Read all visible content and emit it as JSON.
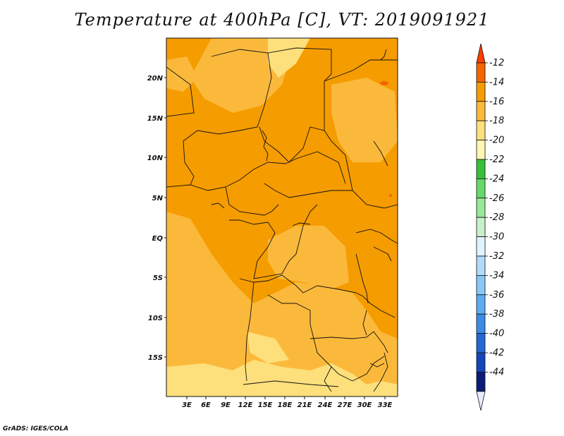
{
  "title": "Temperature at 400hPa [C], VT: 2019091921",
  "credit": "GrADS: IGES/COLA",
  "map": {
    "lon_labels": [
      "3E",
      "6E",
      "9E",
      "12E",
      "15E",
      "18E",
      "21E",
      "24E",
      "27E",
      "30E",
      "33E"
    ],
    "lat_labels": [
      "20N",
      "15N",
      "10N",
      "5N",
      "EQ",
      "5S",
      "10S",
      "15S"
    ]
  },
  "colorbar": {
    "labels": [
      "-12",
      "-14",
      "-16",
      "-18",
      "-20",
      "-22",
      "-24",
      "-26",
      "-28",
      "-30",
      "-32",
      "-34",
      "-36",
      "-38",
      "-40",
      "-42",
      "-44"
    ],
    "colors": [
      "#ff3d00",
      "#f56400",
      "#f59c00",
      "#fbb93c",
      "#fde07c",
      "#fff6b4",
      "#38c038",
      "#68d868",
      "#98e898",
      "#c8f0c8",
      "#e0f4ff",
      "#b0dcfa",
      "#88c8f6",
      "#5cacf0",
      "#3c8ce6",
      "#2468d4",
      "#1446b8",
      "#0a1c78",
      "#e8ecfc"
    ]
  }
}
